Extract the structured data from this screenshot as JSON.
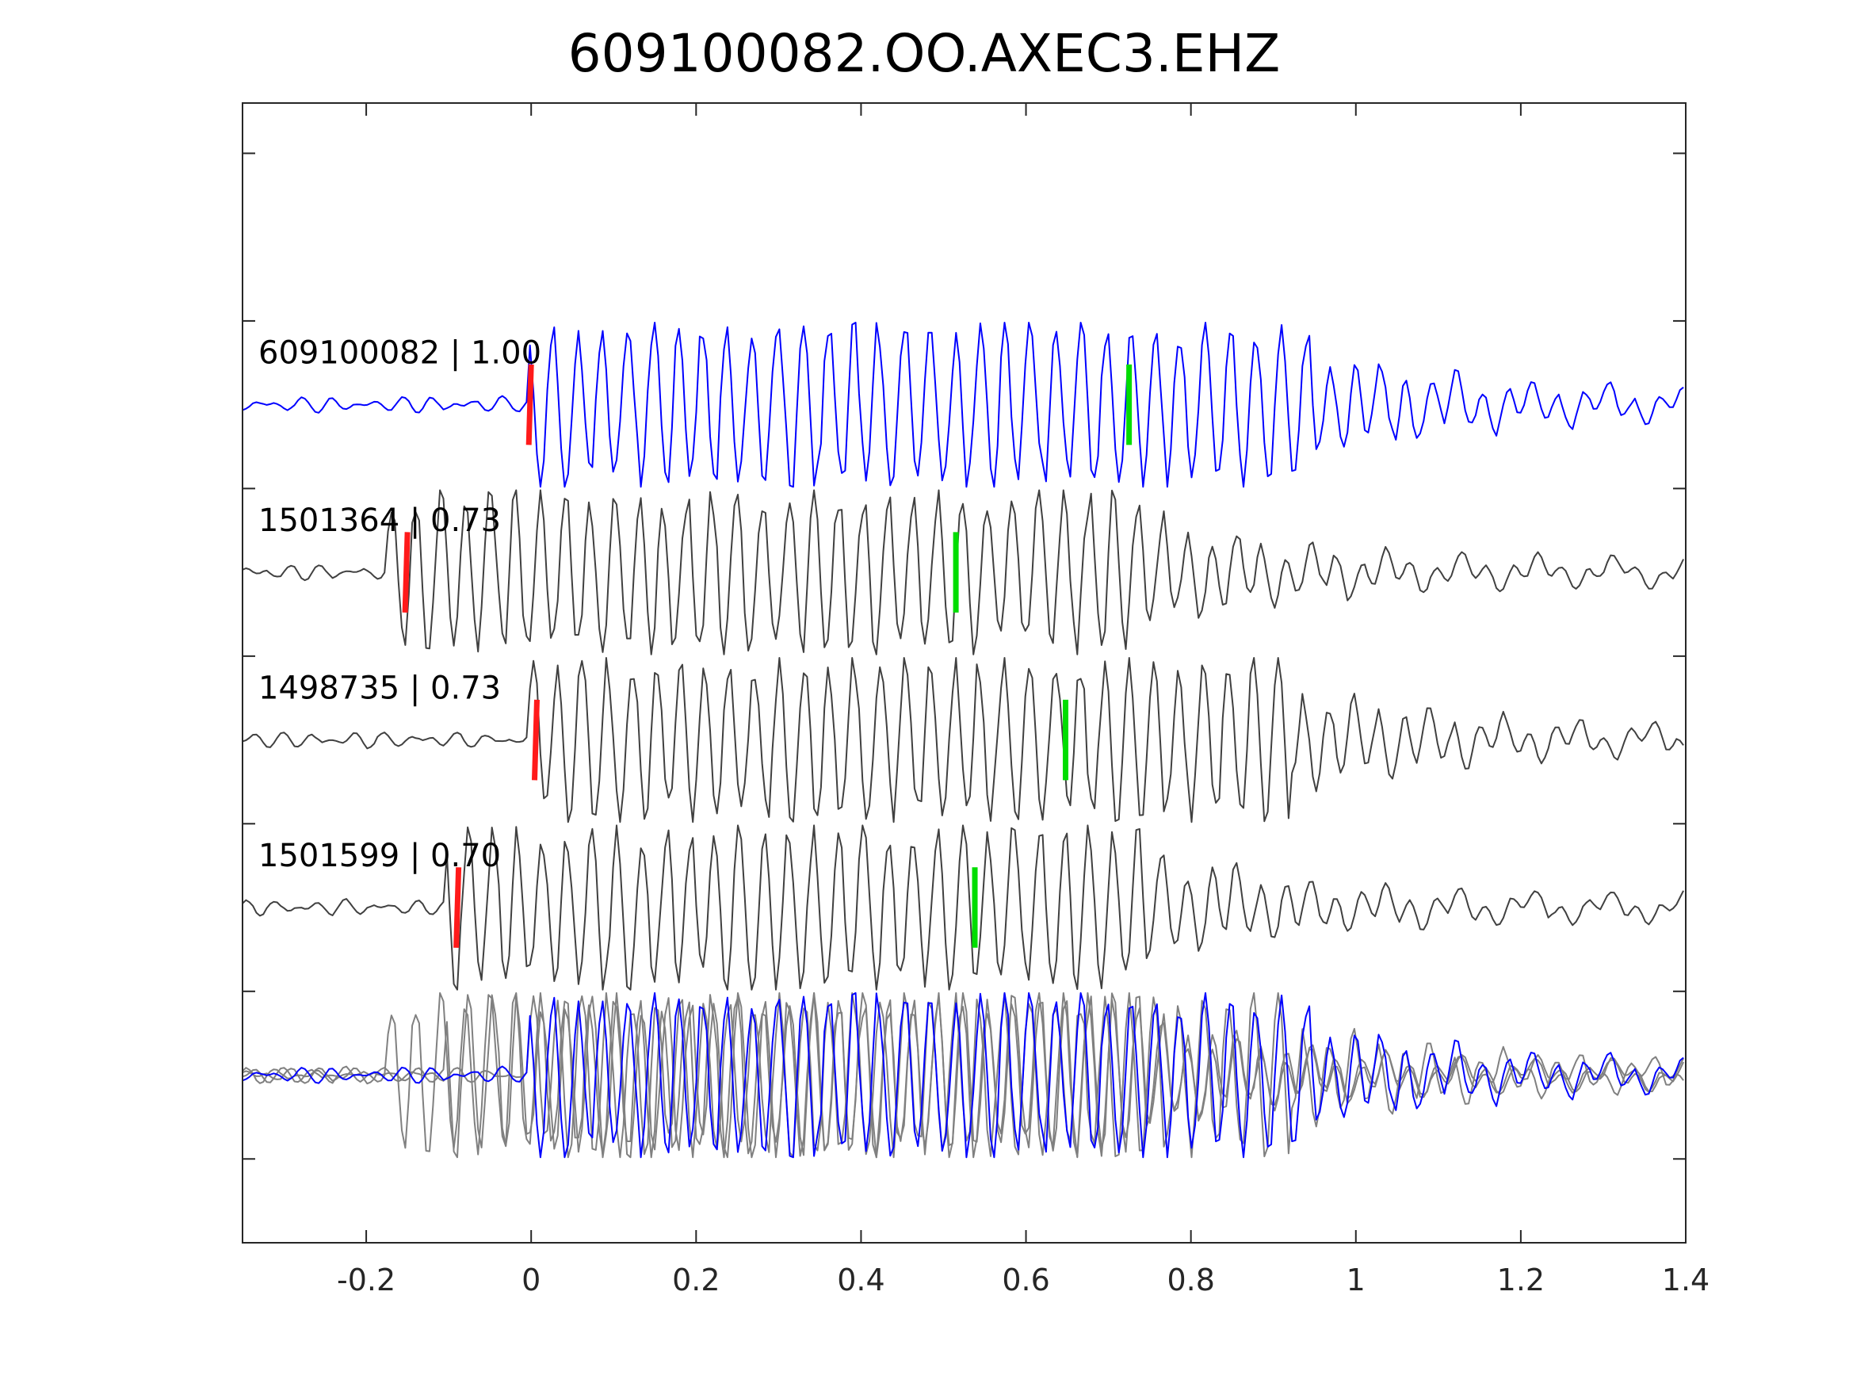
{
  "chart_data": {
    "type": "line",
    "title": "609100082.OO.AXEC3.EHZ",
    "xlabel": "",
    "ylabel": "",
    "xlim": [
      -0.35,
      1.4
    ],
    "xticks": [
      -0.2,
      0,
      0.2,
      0.4,
      0.6,
      0.8,
      1,
      1.2,
      1.4
    ],
    "xtick_labels": [
      "-0.2",
      "0",
      "0.2",
      "0.4",
      "0.6",
      "0.8",
      "1",
      "1.2",
      "1.4"
    ],
    "ylim": [
      0,
      6.8
    ],
    "yticks": [
      0.5,
      1.5,
      2.5,
      3.5,
      4.5,
      5.5,
      6.5
    ],
    "grid": false,
    "colors": {
      "reference": "#0000ff",
      "trace": "#404040",
      "overlay_trace": "#808080",
      "p_pick": "#ff1a1a",
      "s_pick": "#00dd00",
      "axis": "#262626"
    },
    "series": [
      {
        "name": "609100082",
        "label": "609100082 | 1.00",
        "correlation": 1.0,
        "baseline": 5.0,
        "role": "reference",
        "p_pick": 0.0,
        "s_pick": 0.725,
        "onset": 0.0,
        "coda_end": 0.95,
        "peak_amplitude": 0.5
      },
      {
        "name": "1501364",
        "label": "1501364 | 0.73",
        "correlation": 0.73,
        "baseline": 4.0,
        "role": "template",
        "p_pick": -0.15,
        "s_pick": 0.515,
        "onset": -0.17,
        "coda_end": 0.75,
        "peak_amplitude": 0.5
      },
      {
        "name": "1498735",
        "label": "1498735 | 0.73",
        "correlation": 0.73,
        "baseline": 3.0,
        "role": "template",
        "p_pick": 0.007,
        "s_pick": 0.648,
        "onset": 0.0,
        "coda_end": 0.92,
        "peak_amplitude": 0.5
      },
      {
        "name": "1501599",
        "label": "1501599 | 0.70",
        "correlation": 0.7,
        "baseline": 2.0,
        "role": "template",
        "p_pick": -0.088,
        "s_pick": 0.538,
        "onset": -0.1,
        "coda_end": 0.75,
        "peak_amplitude": 0.5
      }
    ],
    "overlay": {
      "baseline": 1.0
    },
    "pick_half_height": 0.24
  }
}
